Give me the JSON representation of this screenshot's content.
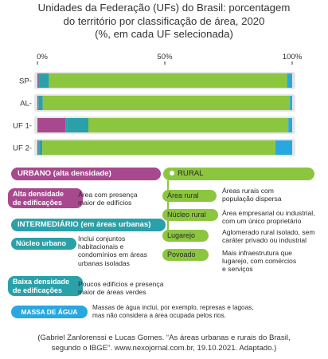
{
  "title_lines": [
    "Unidades da Federação (UFs) do Brasil: porcentagem",
    "do território por classificação de área, 2020",
    "(%, em cada UF selecionada)"
  ],
  "chart_data": {
    "type": "bar",
    "orientation": "horizontal",
    "stacked": true,
    "categories": [
      "SP",
      "AL",
      "UF 1",
      "UF 2"
    ],
    "category_labels": [
      "SP-",
      "AL-",
      "UF 1-",
      "UF 2-"
    ],
    "x_ticks": [
      "0%",
      "50%",
      "100%"
    ],
    "x_tick_values": [
      0,
      50,
      100
    ],
    "xlim": [
      0,
      100
    ],
    "series": [
      {
        "name": "Alta densidade de edificações",
        "color": "#a8488f",
        "values": [
          0.5,
          0.4,
          11.0,
          0.4
        ]
      },
      {
        "name": "Núcleo urbano",
        "color": "#2aa1a8",
        "values": [
          0.3,
          0.2,
          0.6,
          0.3
        ]
      },
      {
        "name": "Baixa densidade de edificações",
        "color": "#2aa1a8",
        "values": [
          3.7,
          1.5,
          8.4,
          1.2
        ]
      },
      {
        "name": "Rural",
        "color": "#8cc63f",
        "values": [
          93.5,
          97.0,
          78.5,
          91.5
        ]
      },
      {
        "name": "Massa de água",
        "color": "#29a8e0",
        "values": [
          2.0,
          0.9,
          1.5,
          6.6
        ]
      }
    ]
  },
  "legend": {
    "urbano": {
      "header": "URBANO (alta densidade)",
      "items": [
        {
          "label_lines": [
            "Alta densidade",
            "de edificações"
          ],
          "desc_lines": [
            "Área com presença",
            "maior de edifícios"
          ]
        }
      ]
    },
    "intermediario": {
      "header": "INTERMEDIÁRIO (em áreas urbanas)",
      "items": [
        {
          "label_lines": [
            "Núcleo urbano"
          ],
          "desc_lines": [
            "Inclui conjuntos",
            "habitacionais e",
            "condomínios em áreas",
            "urbanas isoladas"
          ]
        },
        {
          "label_lines": [
            "Baixa densidade",
            "de edificações"
          ],
          "desc_lines": [
            "Poucos edifícios e presença",
            "maior de áreas verdes"
          ]
        }
      ]
    },
    "rural": {
      "header": "RURAL",
      "items": [
        {
          "label": "Área rural",
          "desc_lines": [
            "Áreas rurais com",
            "população dispersa"
          ]
        },
        {
          "label": "Núcleo rural",
          "desc_lines": [
            "Área empresarial ou industrial,",
            "com um único proprietário"
          ]
        },
        {
          "label": "Lugarejo",
          "desc_lines": [
            "Aglomerado rural isolado, sem",
            "caráter privado ou industrial"
          ]
        },
        {
          "label": "Povoado",
          "desc_lines": [
            "Mais infraestrutura que",
            "lugarejo, com comércios",
            "e serviços"
          ]
        }
      ]
    },
    "agua": {
      "header": "MASSA DE ÁGUA",
      "desc_lines": [
        "Massas de água inclui, por exemplo, represas e lagoas,",
        "mas não considera a área ocupada pelos rios."
      ]
    }
  },
  "source_lines": [
    "(Gabriel Zanlorenssi e Lucas Gomes. “As áreas urbanas e rurais do Brasil,",
    "segundo o IBGE”. www.nexojornal.com.br, 19.10.2021. Adaptado.)"
  ]
}
